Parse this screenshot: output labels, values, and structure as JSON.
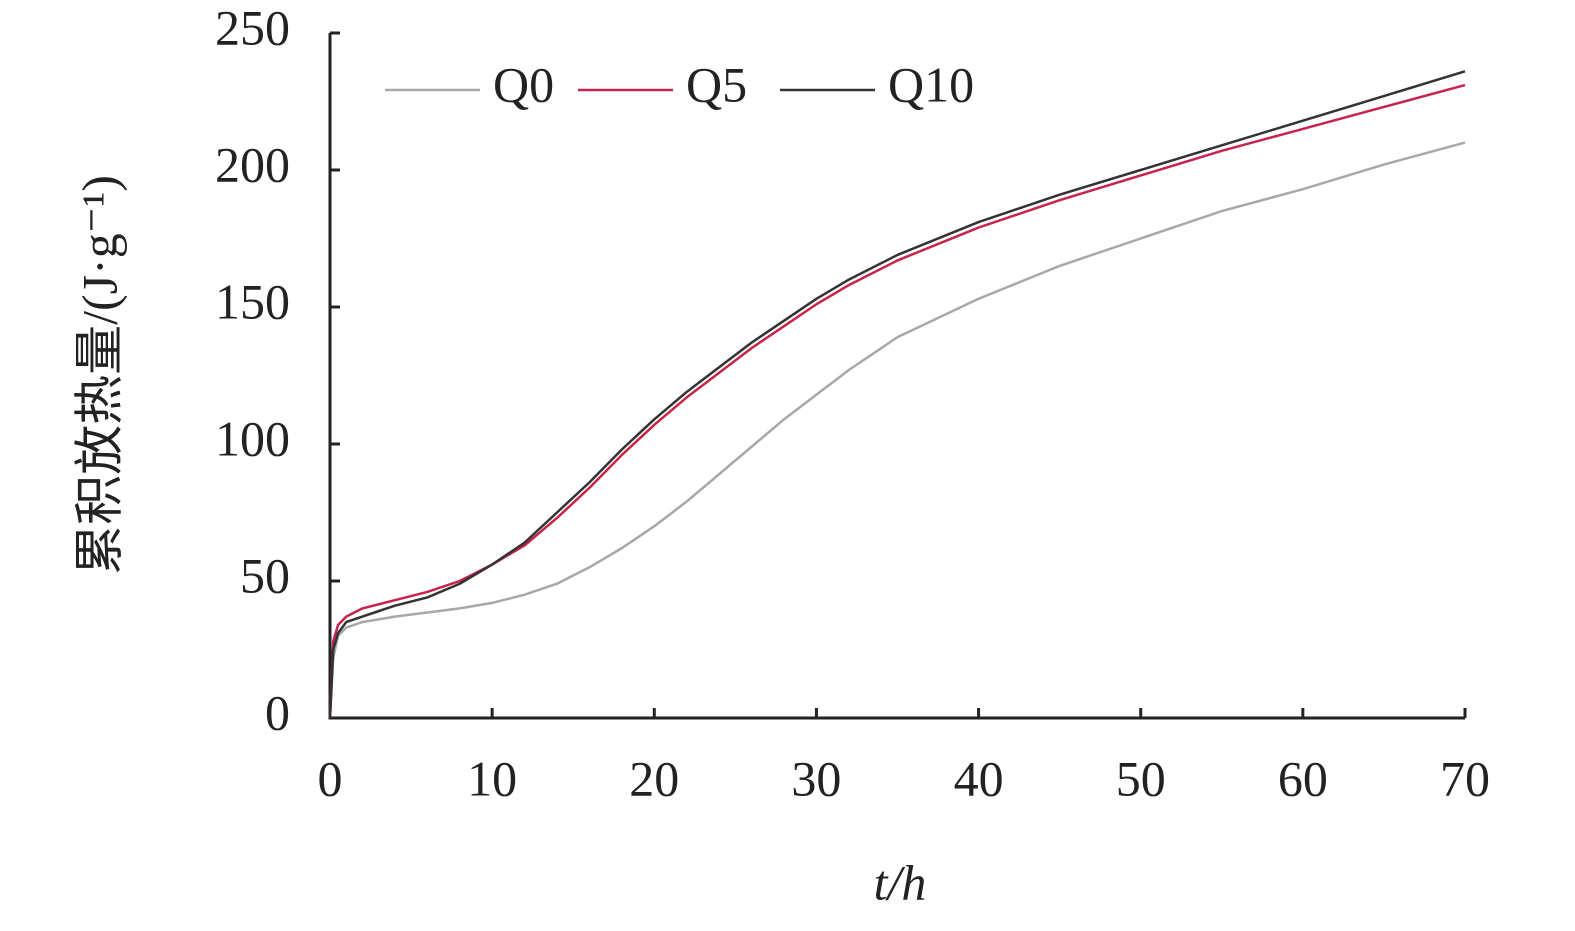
{
  "chart_data": {
    "type": "line",
    "xlabel": "t/h",
    "ylabel": "累积放热量/(J·g⁻¹)",
    "x": [
      0,
      0.2,
      0.5,
      1,
      2,
      4,
      6,
      8,
      10,
      12,
      14,
      16,
      18,
      20,
      22,
      24,
      26,
      28,
      30,
      32,
      35,
      40,
      45,
      50,
      55,
      60,
      65,
      70
    ],
    "series": [
      {
        "name": "Q0",
        "color": "#a8a8a8",
        "values": [
          0,
          22,
          30,
          33,
          35,
          37,
          38.5,
          40,
          42,
          45,
          49,
          55,
          62,
          70,
          79,
          89,
          99,
          109,
          118,
          127,
          139,
          153,
          165,
          175,
          185,
          193,
          202,
          210
        ]
      },
      {
        "name": "Q5",
        "color": "#c8244a",
        "values": [
          0,
          28,
          34,
          37,
          40,
          43,
          46,
          50,
          56,
          63,
          73,
          84,
          96,
          107,
          117,
          126,
          135,
          143,
          151,
          158,
          167,
          179,
          189,
          198,
          207,
          215,
          223,
          231
        ]
      },
      {
        "name": "Q10",
        "color": "#333333",
        "values": [
          0,
          25,
          31,
          35,
          37,
          41,
          44,
          49,
          56,
          64,
          75,
          86,
          98,
          109,
          119,
          128,
          137,
          145,
          153,
          160,
          169,
          181,
          191,
          200,
          209,
          218,
          227,
          236
        ]
      }
    ],
    "xlim": [
      0,
      70
    ],
    "xticks": [
      0,
      10,
      20,
      30,
      40,
      50,
      60,
      70
    ],
    "ylim": [
      0,
      250
    ],
    "yticks": [
      0,
      50,
      100,
      150,
      200,
      250
    ],
    "legend": "top-left"
  }
}
